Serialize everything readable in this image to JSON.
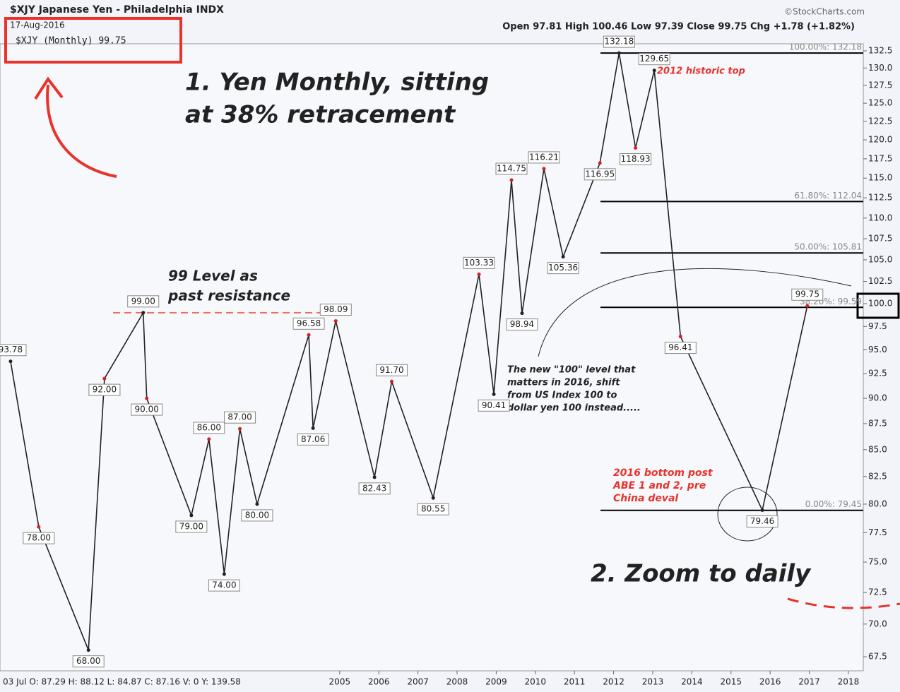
{
  "chart_data": {
    "type": "line",
    "title": "$XJY Japanese Yen - Philadelphia INDX",
    "date": "17-Aug-2016",
    "legend_label": "$XJY (Monthly) 99.75",
    "credit": "©StockCharts.com",
    "stats": "Open 97.81 High 100.46 Low 97.39 Close 99.75 Chg +1.78 (+1.82%)",
    "cursor": "03 Jul O: 87.29 H: 88.12 L: 84.87 C: 87.16 V: 0 Y: 139.58",
    "log_scale": true,
    "color": "#222222",
    "x": [
      1996.59,
      1997.31,
      1998.58,
      1998.99,
      1999.98,
      2000.07,
      2001.21,
      2001.66,
      2002.05,
      2002.45,
      2002.89,
      2004.21,
      2004.32,
      2004.9,
      2005.89,
      2006.33,
      2007.39,
      2008.56,
      2008.94,
      2009.39,
      2009.66,
      2010.22,
      2010.71,
      2011.65,
      2012.14,
      2012.56,
      2013.04,
      2013.71,
      2015.8,
      2016.95
    ],
    "series": [
      {
        "name": "$XJY",
        "color": "#222222",
        "values": [
          93.78,
          78,
          68,
          92,
          99,
          90,
          79,
          86,
          74,
          87,
          80,
          96.58,
          87.06,
          98.09,
          82.43,
          91.7,
          80.55,
          103.33,
          90.41,
          114.75,
          98.94,
          116.21,
          105.36,
          116.95,
          132.18,
          118.93,
          129.65,
          96.41,
          79.46,
          99.75
        ],
        "value_labels": [
          "93.78",
          "78.00",
          "68.00",
          "92.00",
          "99.00",
          "90.00",
          "79.00",
          "86.00",
          "74.00",
          "87.00",
          "80.00",
          "96.58",
          "87.06",
          "98.09",
          "82.43",
          "91.70",
          "80.55",
          "103.33",
          "90.41",
          "114.75",
          "98.94",
          "116.21",
          "105.36",
          "116.95",
          "132.18",
          "118.93",
          "129.65",
          "96.41",
          "79.46",
          "99.75"
        ]
      }
    ],
    "xlim": [
      1996.32,
      2018.38
    ],
    "xticks": [
      2005,
      2006,
      2007,
      2008,
      2009,
      2010,
      2011,
      2012,
      2013,
      2014,
      2015,
      2016,
      2017,
      2018
    ],
    "ylim": [
      66.45,
      133.55
    ],
    "yticks": [
      67.5,
      {
        "value": 70,
        "label": "70.0"
      },
      72.5,
      {
        "value": 75,
        "label": "75.0"
      },
      77.5,
      {
        "value": 80,
        "label": "80.0"
      },
      82.5,
      {
        "value": 85,
        "label": "85.0"
      },
      87.5,
      {
        "value": 90,
        "label": "90.0"
      },
      92.5,
      {
        "value": 95,
        "label": "95.0"
      },
      97.5,
      {
        "value": 100,
        "label": "100.0"
      },
      102.5,
      {
        "value": 105,
        "label": "105.0"
      },
      107.5,
      {
        "value": 110,
        "label": "110.0"
      },
      112.5,
      {
        "value": 115,
        "label": "115.0"
      },
      117.5,
      {
        "value": 120,
        "label": "120.0"
      },
      122.5,
      {
        "value": 125,
        "label": "125.0"
      },
      127.5,
      {
        "value": 130,
        "label": "130.0"
      },
      132.5
    ],
    "levels": [
      {
        "value": 132.18,
        "label": "100.00%: 132.18"
      },
      {
        "value": 112.04,
        "label": "61.80%: 112.04"
      },
      {
        "value": 105.81,
        "label": "50.00%: 105.81"
      },
      {
        "value": 99.59,
        "label": "38.20%: 99.59"
      },
      {
        "value": 79.45,
        "label": "0.00%: 79.45"
      }
    ],
    "resistance": 99,
    "annotations": [
      "1. Yen Monthly, sitting",
      "at 38% retracement",
      "99 Level as",
      "past resistance",
      "2012 historic top",
      "The new \"100\" level that",
      "matters in 2016, shift",
      "from US Index 100 to",
      "dollar yen 100 instead.....",
      "2016 bottom post",
      "ABE 1 and 2, pre",
      "China deval",
      "2. Zoom to daily"
    ]
  }
}
